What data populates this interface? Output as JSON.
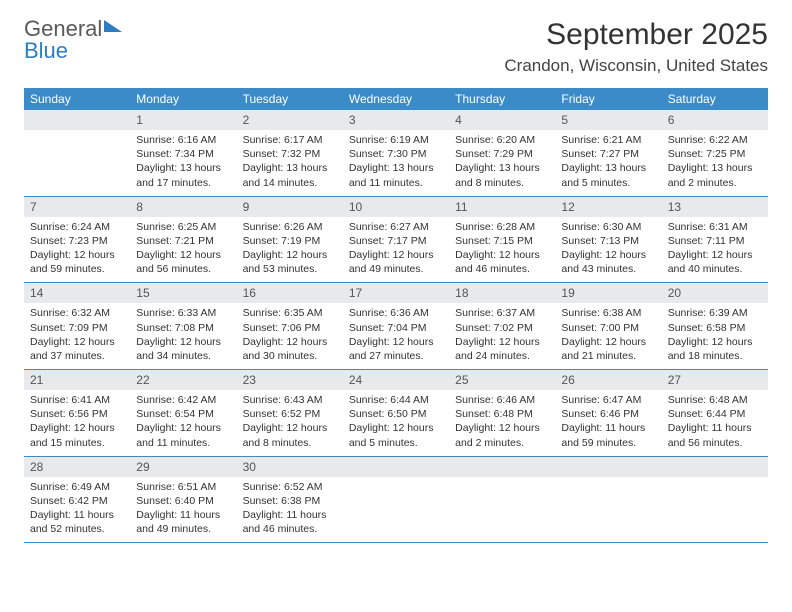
{
  "brand": {
    "part1": "General",
    "part2": "Blue"
  },
  "title": "September 2025",
  "location": "Crandon, Wisconsin, United States",
  "weekdays": [
    "Sunday",
    "Monday",
    "Tuesday",
    "Wednesday",
    "Thursday",
    "Friday",
    "Saturday"
  ],
  "colors": {
    "header_bg": "#3b8bc9",
    "daynum_bg": "#e8e9ea",
    "brand_blue": "#2d7dc0",
    "text": "#333333"
  },
  "weeks": [
    [
      {
        "n": "",
        "sunrise": "",
        "sunset": "",
        "daylight": ""
      },
      {
        "n": "1",
        "sunrise": "Sunrise: 6:16 AM",
        "sunset": "Sunset: 7:34 PM",
        "daylight": "Daylight: 13 hours and 17 minutes."
      },
      {
        "n": "2",
        "sunrise": "Sunrise: 6:17 AM",
        "sunset": "Sunset: 7:32 PM",
        "daylight": "Daylight: 13 hours and 14 minutes."
      },
      {
        "n": "3",
        "sunrise": "Sunrise: 6:19 AM",
        "sunset": "Sunset: 7:30 PM",
        "daylight": "Daylight: 13 hours and 11 minutes."
      },
      {
        "n": "4",
        "sunrise": "Sunrise: 6:20 AM",
        "sunset": "Sunset: 7:29 PM",
        "daylight": "Daylight: 13 hours and 8 minutes."
      },
      {
        "n": "5",
        "sunrise": "Sunrise: 6:21 AM",
        "sunset": "Sunset: 7:27 PM",
        "daylight": "Daylight: 13 hours and 5 minutes."
      },
      {
        "n": "6",
        "sunrise": "Sunrise: 6:22 AM",
        "sunset": "Sunset: 7:25 PM",
        "daylight": "Daylight: 13 hours and 2 minutes."
      }
    ],
    [
      {
        "n": "7",
        "sunrise": "Sunrise: 6:24 AM",
        "sunset": "Sunset: 7:23 PM",
        "daylight": "Daylight: 12 hours and 59 minutes."
      },
      {
        "n": "8",
        "sunrise": "Sunrise: 6:25 AM",
        "sunset": "Sunset: 7:21 PM",
        "daylight": "Daylight: 12 hours and 56 minutes."
      },
      {
        "n": "9",
        "sunrise": "Sunrise: 6:26 AM",
        "sunset": "Sunset: 7:19 PM",
        "daylight": "Daylight: 12 hours and 53 minutes."
      },
      {
        "n": "10",
        "sunrise": "Sunrise: 6:27 AM",
        "sunset": "Sunset: 7:17 PM",
        "daylight": "Daylight: 12 hours and 49 minutes."
      },
      {
        "n": "11",
        "sunrise": "Sunrise: 6:28 AM",
        "sunset": "Sunset: 7:15 PM",
        "daylight": "Daylight: 12 hours and 46 minutes."
      },
      {
        "n": "12",
        "sunrise": "Sunrise: 6:30 AM",
        "sunset": "Sunset: 7:13 PM",
        "daylight": "Daylight: 12 hours and 43 minutes."
      },
      {
        "n": "13",
        "sunrise": "Sunrise: 6:31 AM",
        "sunset": "Sunset: 7:11 PM",
        "daylight": "Daylight: 12 hours and 40 minutes."
      }
    ],
    [
      {
        "n": "14",
        "sunrise": "Sunrise: 6:32 AM",
        "sunset": "Sunset: 7:09 PM",
        "daylight": "Daylight: 12 hours and 37 minutes."
      },
      {
        "n": "15",
        "sunrise": "Sunrise: 6:33 AM",
        "sunset": "Sunset: 7:08 PM",
        "daylight": "Daylight: 12 hours and 34 minutes."
      },
      {
        "n": "16",
        "sunrise": "Sunrise: 6:35 AM",
        "sunset": "Sunset: 7:06 PM",
        "daylight": "Daylight: 12 hours and 30 minutes."
      },
      {
        "n": "17",
        "sunrise": "Sunrise: 6:36 AM",
        "sunset": "Sunset: 7:04 PM",
        "daylight": "Daylight: 12 hours and 27 minutes."
      },
      {
        "n": "18",
        "sunrise": "Sunrise: 6:37 AM",
        "sunset": "Sunset: 7:02 PM",
        "daylight": "Daylight: 12 hours and 24 minutes."
      },
      {
        "n": "19",
        "sunrise": "Sunrise: 6:38 AM",
        "sunset": "Sunset: 7:00 PM",
        "daylight": "Daylight: 12 hours and 21 minutes."
      },
      {
        "n": "20",
        "sunrise": "Sunrise: 6:39 AM",
        "sunset": "Sunset: 6:58 PM",
        "daylight": "Daylight: 12 hours and 18 minutes."
      }
    ],
    [
      {
        "n": "21",
        "sunrise": "Sunrise: 6:41 AM",
        "sunset": "Sunset: 6:56 PM",
        "daylight": "Daylight: 12 hours and 15 minutes."
      },
      {
        "n": "22",
        "sunrise": "Sunrise: 6:42 AM",
        "sunset": "Sunset: 6:54 PM",
        "daylight": "Daylight: 12 hours and 11 minutes."
      },
      {
        "n": "23",
        "sunrise": "Sunrise: 6:43 AM",
        "sunset": "Sunset: 6:52 PM",
        "daylight": "Daylight: 12 hours and 8 minutes."
      },
      {
        "n": "24",
        "sunrise": "Sunrise: 6:44 AM",
        "sunset": "Sunset: 6:50 PM",
        "daylight": "Daylight: 12 hours and 5 minutes."
      },
      {
        "n": "25",
        "sunrise": "Sunrise: 6:46 AM",
        "sunset": "Sunset: 6:48 PM",
        "daylight": "Daylight: 12 hours and 2 minutes."
      },
      {
        "n": "26",
        "sunrise": "Sunrise: 6:47 AM",
        "sunset": "Sunset: 6:46 PM",
        "daylight": "Daylight: 11 hours and 59 minutes."
      },
      {
        "n": "27",
        "sunrise": "Sunrise: 6:48 AM",
        "sunset": "Sunset: 6:44 PM",
        "daylight": "Daylight: 11 hours and 56 minutes."
      }
    ],
    [
      {
        "n": "28",
        "sunrise": "Sunrise: 6:49 AM",
        "sunset": "Sunset: 6:42 PM",
        "daylight": "Daylight: 11 hours and 52 minutes."
      },
      {
        "n": "29",
        "sunrise": "Sunrise: 6:51 AM",
        "sunset": "Sunset: 6:40 PM",
        "daylight": "Daylight: 11 hours and 49 minutes."
      },
      {
        "n": "30",
        "sunrise": "Sunrise: 6:52 AM",
        "sunset": "Sunset: 6:38 PM",
        "daylight": "Daylight: 11 hours and 46 minutes."
      },
      {
        "n": "",
        "sunrise": "",
        "sunset": "",
        "daylight": ""
      },
      {
        "n": "",
        "sunrise": "",
        "sunset": "",
        "daylight": ""
      },
      {
        "n": "",
        "sunrise": "",
        "sunset": "",
        "daylight": ""
      },
      {
        "n": "",
        "sunrise": "",
        "sunset": "",
        "daylight": ""
      }
    ]
  ]
}
